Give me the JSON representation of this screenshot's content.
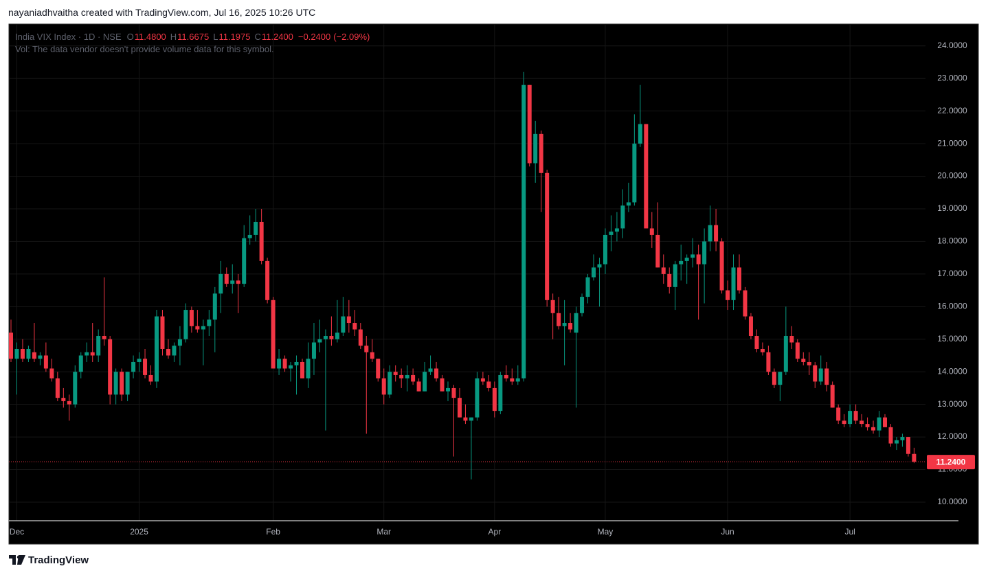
{
  "header": {
    "text": "nayaniadhvaitha created with TradingView.com, Jul 16, 2025 10:26 UTC"
  },
  "footer": {
    "brand": "TradingView"
  },
  "chart_data": {
    "type": "candlestick",
    "symbol": "India VIX Index · 1D · NSE",
    "ohlc_names": [
      "O",
      "H",
      "L",
      "C"
    ],
    "ohlc": [
      11.48,
      11.6675,
      11.1975,
      11.24
    ],
    "ohlc_labels": [
      "11.4800",
      "11.6675",
      "11.1975",
      "11.2400"
    ],
    "change": -0.24,
    "change_label": "−0.2400",
    "change_percent": -2.09,
    "change_percent_label": "(−2.09%)",
    "volume_note": "Vol: The data vendor doesn't provide volume data for this symbol.",
    "last_price": 11.24,
    "last_price_label": "11.2400",
    "up_color": "#089981",
    "down_color": "#f23645",
    "grid": true,
    "grid_color": "#161616",
    "categories": [
      null,
      "Dec",
      null,
      null,
      null,
      null,
      null,
      null,
      null,
      null,
      null,
      null,
      null,
      null,
      null,
      null,
      null,
      null,
      null,
      null,
      null,
      null,
      "2025",
      null,
      null,
      null,
      null,
      null,
      null,
      null,
      null,
      null,
      null,
      null,
      null,
      null,
      null,
      null,
      null,
      null,
      null,
      null,
      null,
      null,
      null,
      "Feb",
      null,
      null,
      null,
      null,
      null,
      null,
      null,
      null,
      null,
      null,
      null,
      null,
      null,
      null,
      null,
      null,
      null,
      null,
      "Mar",
      null,
      null,
      null,
      null,
      null,
      null,
      null,
      null,
      null,
      null,
      null,
      null,
      null,
      null,
      null,
      null,
      null,
      null,
      "Apr",
      null,
      null,
      null,
      null,
      null,
      null,
      null,
      null,
      null,
      null,
      null,
      null,
      null,
      null,
      null,
      null,
      null,
      null,
      "May",
      null,
      null,
      null,
      null,
      null,
      null,
      null,
      null,
      null,
      null,
      null,
      null,
      null,
      null,
      null,
      null,
      null,
      null,
      null,
      null,
      "Jun",
      null,
      null,
      null,
      null,
      null,
      null,
      null,
      null,
      null,
      null,
      null,
      null,
      null,
      null,
      null,
      null,
      null,
      null,
      null,
      null,
      "Jul",
      null,
      null,
      null,
      null,
      null,
      null,
      null,
      null,
      null,
      null,
      null
    ],
    "open": [
      15.2,
      14.4,
      14.7,
      14.4,
      14.6,
      14.4,
      14.5,
      14.1,
      13.8,
      13.2,
      13.1,
      13.0,
      14.0,
      14.5,
      14.6,
      14.5,
      15.1,
      15.0,
      13.3,
      14.0,
      13.3,
      14.0,
      14.3,
      14.4,
      13.9,
      13.7,
      15.7,
      14.7,
      14.5,
      14.8,
      15.0,
      15.9,
      15.4,
      15.3,
      15.4,
      15.6,
      16.4,
      17.0,
      16.7,
      16.8,
      16.7,
      18.1,
      18.2,
      18.6,
      17.4,
      16.2,
      14.1,
      14.4,
      14.1,
      14.2,
      14.3,
      13.8,
      14.4,
      14.9,
      15.0,
      15.1,
      15.0,
      15.2,
      15.7,
      15.5,
      15.3,
      14.8,
      14.6,
      14.4,
      13.8,
      13.3,
      14.0,
      13.9,
      13.8,
      13.9,
      13.7,
      13.4,
      14.0,
      14.1,
      13.8,
      13.4,
      13.5,
      13.2,
      12.6,
      12.5,
      12.6,
      13.8,
      13.7,
      13.5,
      12.8,
      13.9,
      13.8,
      13.7,
      13.8,
      22.8,
      20.4,
      21.3,
      20.1,
      16.2,
      15.8,
      15.4,
      15.5,
      15.2,
      15.8,
      16.3,
      16.9,
      17.2,
      17.3,
      18.2,
      18.3,
      18.4,
      19.1,
      19.2,
      21.0,
      21.6,
      18.4,
      18.2,
      17.2,
      17.0,
      16.6,
      17.3,
      17.4,
      17.5,
      17.6,
      17.3,
      18.0,
      18.5,
      18.0,
      16.5,
      16.2,
      17.2,
      16.5,
      15.7,
      15.1,
      14.7,
      14.6,
      14.0,
      13.6,
      14.0,
      15.1,
      14.9,
      14.4,
      14.3,
      14.2,
      13.7,
      14.1,
      13.6,
      12.9,
      12.5,
      12.4,
      12.8,
      12.5,
      12.4,
      12.3,
      12.2,
      12.6,
      12.3,
      11.8,
      11.9,
      12.0,
      11.48
    ],
    "high": [
      15.6,
      14.9,
      15.0,
      14.8,
      15.5,
      14.6,
      14.9,
      14.4,
      14.0,
      13.5,
      13.3,
      14.2,
      14.6,
      14.9,
      15.5,
      15.3,
      16.9,
      15.1,
      14.1,
      14.1,
      14.0,
      14.5,
      14.6,
      14.7,
      14.2,
      15.9,
      15.9,
      15.0,
      14.9,
      15.4,
      16.1,
      16.0,
      15.9,
      15.6,
      15.9,
      16.6,
      17.4,
      17.2,
      17.3,
      17.0,
      18.5,
      18.8,
      19.0,
      19.0,
      17.5,
      16.3,
      14.7,
      14.5,
      14.3,
      14.5,
      14.4,
      14.9,
      15.5,
      15.6,
      15.3,
      15.7,
      16.2,
      16.3,
      16.2,
      15.9,
      15.5,
      15.1,
      15.0,
      14.4,
      14.1,
      14.2,
      14.2,
      14.1,
      14.2,
      14.1,
      13.8,
      14.3,
      14.5,
      14.3,
      13.9,
      13.7,
      13.6,
      13.5,
      13.0,
      12.6,
      14.0,
      14.0,
      13.9,
      13.7,
      14.0,
      14.2,
      14.1,
      14.2,
      23.2,
      22.8,
      21.7,
      21.4,
      20.2,
      16.4,
      16.3,
      16.2,
      15.8,
      16.0,
      16.4,
      17.0,
      17.6,
      17.5,
      18.4,
      18.8,
      18.9,
      19.6,
      19.8,
      21.9,
      22.8,
      21.6,
      18.9,
      19.2,
      17.6,
      17.2,
      17.4,
      17.9,
      17.6,
      18.1,
      17.9,
      18.4,
      19.1,
      19.0,
      18.1,
      16.8,
      17.6,
      17.6,
      16.6,
      15.8,
      15.3,
      14.9,
      14.8,
      14.1,
      14.0,
      16.0,
      15.4,
      15.0,
      14.6,
      14.6,
      14.3,
      14.5,
      14.3,
      13.7,
      13.0,
      12.7,
      13.0,
      13.0,
      12.7,
      12.6,
      12.5,
      12.8,
      12.7,
      12.4,
      12.0,
      12.1,
      12.0,
      11.6675
    ],
    "low": [
      14.3,
      13.3,
      14.3,
      14.3,
      14.3,
      14.2,
      14.0,
      13.7,
      13.1,
      12.9,
      12.5,
      12.9,
      13.8,
      14.3,
      14.3,
      14.3,
      14.8,
      13.0,
      13.0,
      13.1,
      13.1,
      13.8,
      14.0,
      13.8,
      13.6,
      13.5,
      14.5,
      14.4,
      14.3,
      14.2,
      14.9,
      15.2,
      15.2,
      14.2,
      15.1,
      14.6,
      15.8,
      16.6,
      16.4,
      15.8,
      16.6,
      17.9,
      18.0,
      17.3,
      16.1,
      14.1,
      13.9,
      14.0,
      13.7,
      13.3,
      13.8,
      13.5,
      13.9,
      14.6,
      12.2,
      14.8,
      14.9,
      15.1,
      15.2,
      15.1,
      14.7,
      12.1,
      14.3,
      13.7,
      13.0,
      13.2,
      13.7,
      13.5,
      13.4,
      13.6,
      13.4,
      13.4,
      13.9,
      13.7,
      13.4,
      13.1,
      11.4,
      12.6,
      12.4,
      10.7,
      12.5,
      13.6,
      13.4,
      12.6,
      12.7,
      13.7,
      13.6,
      13.6,
      13.7,
      20.3,
      19.8,
      18.9,
      16.0,
      15.0,
      15.3,
      14.2,
      15.2,
      12.9,
      15.7,
      16.1,
      16.8,
      16.0,
      17.0,
      17.7,
      18.0,
      18.1,
      18.9,
      19.1,
      20.9,
      18.4,
      17.8,
      17.2,
      16.7,
      16.4,
      15.9,
      16.8,
      16.7,
      17.2,
      15.6,
      16.1,
      17.7,
      17.7,
      16.4,
      15.9,
      15.9,
      16.4,
      15.6,
      15.0,
      14.6,
      14.5,
      13.9,
      13.5,
      13.1,
      13.9,
      14.7,
      14.3,
      14.2,
      13.9,
      13.5,
      13.6,
      13.4,
      12.9,
      12.4,
      12.3,
      12.3,
      12.4,
      12.3,
      12.2,
      12.1,
      12.0,
      12.3,
      11.7,
      11.6,
      11.7,
      11.4,
      11.1975
    ],
    "close": [
      14.4,
      14.7,
      14.4,
      14.7,
      14.4,
      14.5,
      14.1,
      13.8,
      13.2,
      13.1,
      13.0,
      14.0,
      14.5,
      14.6,
      14.5,
      15.1,
      15.0,
      13.3,
      14.0,
      13.3,
      14.0,
      14.3,
      14.4,
      13.9,
      13.7,
      15.7,
      14.7,
      14.5,
      14.8,
      15.0,
      15.9,
      15.4,
      15.3,
      15.4,
      15.6,
      16.4,
      17.0,
      16.7,
      16.8,
      16.7,
      18.1,
      18.2,
      18.6,
      17.4,
      16.2,
      14.1,
      14.4,
      14.1,
      14.2,
      14.3,
      13.8,
      14.4,
      14.9,
      15.0,
      15.1,
      15.0,
      15.2,
      15.7,
      15.5,
      15.3,
      14.8,
      14.6,
      14.4,
      13.8,
      13.3,
      14.0,
      13.9,
      13.8,
      13.9,
      13.7,
      13.4,
      14.0,
      14.1,
      13.8,
      13.4,
      13.5,
      13.2,
      12.6,
      12.5,
      12.6,
      13.8,
      13.7,
      13.5,
      12.8,
      13.9,
      13.8,
      13.7,
      13.8,
      22.8,
      20.4,
      21.3,
      20.1,
      16.2,
      15.8,
      15.4,
      15.5,
      15.3,
      15.8,
      16.3,
      16.9,
      17.2,
      17.3,
      18.2,
      18.3,
      18.4,
      19.1,
      19.2,
      21.0,
      21.6,
      18.4,
      18.2,
      17.2,
      17.0,
      16.6,
      17.3,
      17.4,
      17.5,
      17.6,
      17.3,
      18.0,
      18.5,
      18.0,
      16.5,
      16.2,
      17.2,
      16.5,
      15.7,
      15.1,
      14.7,
      14.6,
      14.0,
      13.6,
      14.0,
      15.1,
      14.9,
      14.4,
      14.3,
      14.2,
      13.7,
      14.1,
      13.6,
      12.9,
      12.5,
      12.4,
      12.8,
      12.5,
      12.4,
      12.3,
      12.2,
      12.6,
      12.3,
      11.8,
      11.9,
      12.0,
      11.48,
      11.24
    ],
    "ylim": [
      9.43,
      24.67
    ],
    "yticks": [
      {
        "value": 10,
        "label": "10.0000"
      },
      {
        "value": 11,
        "label": "11.0000"
      },
      {
        "value": 12,
        "label": "12.0000"
      },
      {
        "value": 13,
        "label": "13.0000"
      },
      {
        "value": 14,
        "label": "14.0000"
      },
      {
        "value": 15,
        "label": "15.0000"
      },
      {
        "value": 16,
        "label": "16.0000"
      },
      {
        "value": 17,
        "label": "17.0000"
      },
      {
        "value": 18,
        "label": "18.0000"
      },
      {
        "value": 19,
        "label": "19.0000"
      },
      {
        "value": 20,
        "label": "20.0000"
      },
      {
        "value": 21,
        "label": "21.0000"
      },
      {
        "value": 22,
        "label": "22.0000"
      },
      {
        "value": 23,
        "label": "23.0000"
      },
      {
        "value": 24,
        "label": "24.0000"
      }
    ]
  }
}
